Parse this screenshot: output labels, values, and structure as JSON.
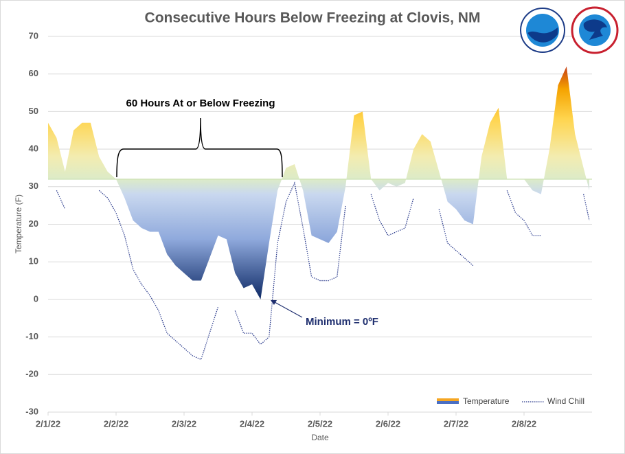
{
  "chart_data": {
    "type": "area",
    "title": "Consecutive Hours Below Freezing at Clovis, NM",
    "xlabel": "Date",
    "ylabel": "Temperature (F)",
    "xlim": [
      0,
      8
    ],
    "ylim": [
      -30,
      70
    ],
    "yticks": [
      -30,
      -20,
      -10,
      0,
      10,
      20,
      30,
      40,
      50,
      60,
      70
    ],
    "xticks": [
      {
        "value": 0,
        "label": "2/1/22"
      },
      {
        "value": 1,
        "label": "2/2/22"
      },
      {
        "value": 2,
        "label": "2/3/22"
      },
      {
        "value": 3,
        "label": "2/4/22"
      },
      {
        "value": 4,
        "label": "2/5/22"
      },
      {
        "value": 5,
        "label": "2/6/22"
      },
      {
        "value": 6,
        "label": "2/7/22"
      },
      {
        "value": 7,
        "label": "2/8/22"
      }
    ],
    "grid": true,
    "baseline": 32,
    "x": [
      0,
      0.125,
      0.25,
      0.375,
      0.5,
      0.625,
      0.75,
      0.875,
      1,
      1.125,
      1.25,
      1.375,
      1.5,
      1.625,
      1.75,
      1.875,
      2,
      2.125,
      2.25,
      2.375,
      2.5,
      2.625,
      2.75,
      2.875,
      3,
      3.125,
      3.25,
      3.375,
      3.5,
      3.625,
      3.75,
      3.875,
      4,
      4.125,
      4.25,
      4.375,
      4.5,
      4.625,
      4.75,
      4.875,
      5,
      5.125,
      5.25,
      5.375,
      5.5,
      5.625,
      5.75,
      5.875,
      6,
      6.125,
      6.25,
      6.375,
      6.5,
      6.625,
      6.75,
      6.875,
      7,
      7.125,
      7.25,
      7.375,
      7.5,
      7.625,
      7.75,
      7.875,
      7.96
    ],
    "series": [
      {
        "name": "Temperature",
        "color": "#f5a623",
        "values": [
          47,
          43,
          34,
          45,
          47,
          47,
          38,
          34,
          32,
          27,
          21,
          19,
          18,
          18,
          12,
          9,
          7,
          5,
          5,
          11,
          17,
          16,
          7,
          3,
          4,
          0,
          15,
          29,
          35,
          36,
          29,
          17,
          16,
          15,
          18,
          30,
          49,
          50,
          32,
          29,
          31,
          30,
          31,
          40,
          44,
          42,
          34,
          26,
          24,
          21,
          20,
          38,
          47,
          51,
          32,
          32,
          32,
          29,
          28,
          40,
          57,
          62,
          44,
          35,
          29
        ]
      },
      {
        "name": "Wind Chill",
        "color": "#2f3f8f",
        "values": [
          null,
          29,
          24,
          null,
          null,
          null,
          29,
          27,
          23,
          17,
          8,
          4,
          1,
          -3,
          -9,
          -11,
          -13,
          -15,
          -16,
          -9,
          -2,
          null,
          -3,
          -9,
          -9,
          -12,
          -10,
          15,
          26,
          31,
          19,
          6,
          5,
          5,
          6,
          25,
          null,
          null,
          28,
          21,
          17,
          18,
          19,
          27,
          null,
          null,
          24,
          15,
          13,
          11,
          9,
          null,
          null,
          null,
          29,
          23,
          21,
          17,
          17,
          null,
          null,
          null,
          null,
          28,
          21
        ]
      }
    ],
    "annotations": [
      "60 Hours At or Below Freezing",
      "Minimum = 0ºF"
    ]
  }
}
